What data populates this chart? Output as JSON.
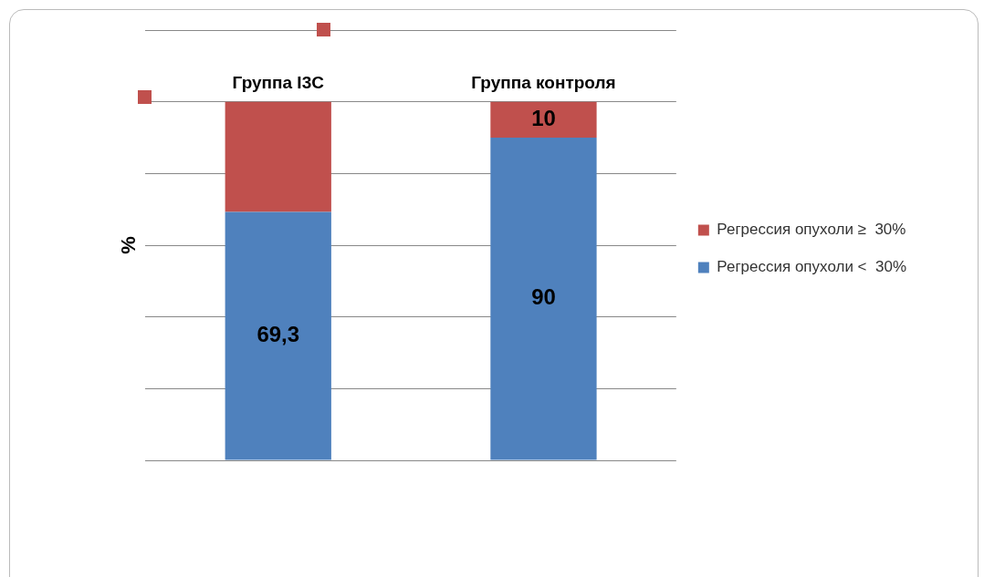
{
  "chart_data": {
    "type": "bar",
    "stacked": true,
    "ylabel": "%",
    "categories": [
      "Группа I3C",
      "Группа контроля"
    ],
    "series": [
      {
        "name": "Регрессия опухоли <  30%",
        "color": "#4f81bd",
        "values": [
          69.3,
          90
        ],
        "value_labels": [
          "69,3",
          "90"
        ]
      },
      {
        "name": "Регрессия опухоли ≥  30%",
        "color": "#c0504d",
        "values": [
          30.7,
          10
        ],
        "value_labels": [
          null,
          "10"
        ]
      }
    ],
    "ylim": [
      0,
      120
    ],
    "yticks": [
      {
        "value": 0,
        "label": null
      },
      {
        "value": 20,
        "label": null
      },
      {
        "value": 40,
        "label": null
      },
      {
        "value": 60,
        "label": null
      },
      {
        "value": 80,
        "label": null
      },
      {
        "value": 100,
        "label": null
      },
      {
        "value": 120,
        "label": null
      }
    ],
    "tick_labels": false,
    "grid": "y",
    "legend": "right"
  }
}
